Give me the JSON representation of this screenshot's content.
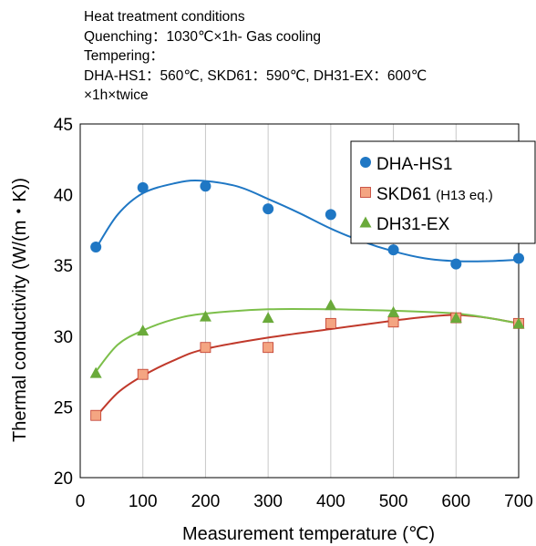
{
  "notes": [
    "Heat treatment conditions",
    "Quenching：1030℃×1h- Gas cooling",
    "Tempering：",
    "DHA-HS1：560℃, SKD61：590℃, DH31-EX：600℃",
    "×1h×twice"
  ],
  "chart_data": {
    "type": "scatter",
    "xlabel": "Measurement temperature (℃)",
    "ylabel": "Thermal conductivity (W/(m・K))",
    "xlim": [
      0,
      700
    ],
    "ylim": [
      20,
      45
    ],
    "x_ticks": [
      "0",
      "100",
      "200",
      "300",
      "400",
      "500",
      "600",
      "700"
    ],
    "y_ticks": [
      "20",
      "25",
      "30",
      "35",
      "40",
      "45"
    ],
    "grid": "vertical",
    "trendlines": true,
    "legend_position": "top-right",
    "series": [
      {
        "name": "DHA-HS1",
        "name_suffix": "",
        "marker": "circle",
        "color": "#1f77c4",
        "x": [
          25,
          100,
          200,
          300,
          400,
          500,
          600,
          700
        ],
        "y": [
          36.3,
          40.5,
          40.6,
          39.0,
          38.6,
          36.1,
          35.1,
          35.5
        ],
        "fit": [
          [
            25,
            36.2
          ],
          [
            60,
            38.6
          ],
          [
            100,
            40.1
          ],
          [
            150,
            40.8
          ],
          [
            190,
            41.0
          ],
          [
            250,
            40.6
          ],
          [
            300,
            39.7
          ],
          [
            350,
            38.7
          ],
          [
            400,
            37.6
          ],
          [
            450,
            36.7
          ],
          [
            500,
            36.0
          ],
          [
            550,
            35.5
          ],
          [
            600,
            35.3
          ],
          [
            650,
            35.3
          ],
          [
            700,
            35.4
          ]
        ]
      },
      {
        "name": "SKD61",
        "name_suffix": "(H13 eq.)",
        "marker": "square",
        "color": "#f4a582",
        "line_color": "#c0392b",
        "x": [
          25,
          100,
          200,
          300,
          400,
          500,
          600,
          700
        ],
        "y": [
          24.4,
          27.3,
          29.2,
          29.2,
          30.9,
          31.0,
          31.3,
          30.9
        ],
        "fit": [
          [
            25,
            24.3
          ],
          [
            60,
            26.0
          ],
          [
            100,
            27.2
          ],
          [
            150,
            28.3
          ],
          [
            200,
            29.1
          ],
          [
            300,
            29.9
          ],
          [
            400,
            30.5
          ],
          [
            500,
            31.1
          ],
          [
            560,
            31.4
          ],
          [
            600,
            31.5
          ],
          [
            650,
            31.3
          ],
          [
            700,
            30.9
          ]
        ]
      },
      {
        "name": "DH31-EX",
        "name_suffix": "",
        "marker": "triangle",
        "color": "#6aaa3a",
        "line_color": "#7cbf4a",
        "x": [
          25,
          100,
          200,
          300,
          400,
          500,
          600,
          700
        ],
        "y": [
          27.4,
          30.4,
          31.4,
          31.3,
          32.2,
          31.7,
          31.3,
          30.9
        ],
        "fit": [
          [
            25,
            27.5
          ],
          [
            60,
            29.4
          ],
          [
            100,
            30.4
          ],
          [
            150,
            31.2
          ],
          [
            200,
            31.6
          ],
          [
            300,
            31.9
          ],
          [
            400,
            31.9
          ],
          [
            500,
            31.8
          ],
          [
            600,
            31.6
          ],
          [
            650,
            31.3
          ],
          [
            700,
            30.9
          ]
        ]
      }
    ]
  }
}
